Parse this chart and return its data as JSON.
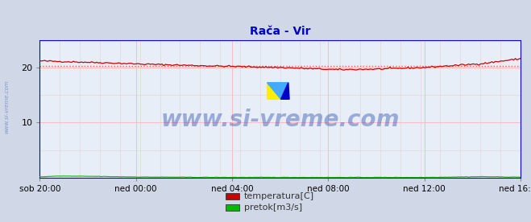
{
  "title": "Rača - Vir",
  "title_color": "#0000cc",
  "bg_color": "#d0d8e8",
  "plot_bg_color": "#e8eef8",
  "border_color": "#0000dd",
  "grid_color_major": "#ffbbbb",
  "grid_color_minor": "#ddcccc",
  "yticks": [
    10,
    20
  ],
  "ylim": [
    0,
    25
  ],
  "xtick_labels": [
    "sob 20:00",
    "ned 00:00",
    "ned 04:00",
    "ned 08:00",
    "ned 12:00",
    "ned 16:00"
  ],
  "xtick_positions_norm": [
    0.0,
    0.2,
    0.4,
    0.6,
    0.8,
    1.0
  ],
  "watermark_text": "www.si-vreme.com",
  "watermark_color": "#2244aa",
  "watermark_alpha": 0.4,
  "side_watermark_text": "www.si-vreme.com",
  "legend_entries": [
    "temperatura[C]",
    "pretok[m3/s]"
  ],
  "legend_colors": [
    "#cc0000",
    "#00bb00"
  ],
  "temp_color": "#cc0000",
  "flow_color": "#00bb00",
  "avg_line_color": "#ff4444",
  "avg_line_value": 20.35,
  "n_points": 288
}
